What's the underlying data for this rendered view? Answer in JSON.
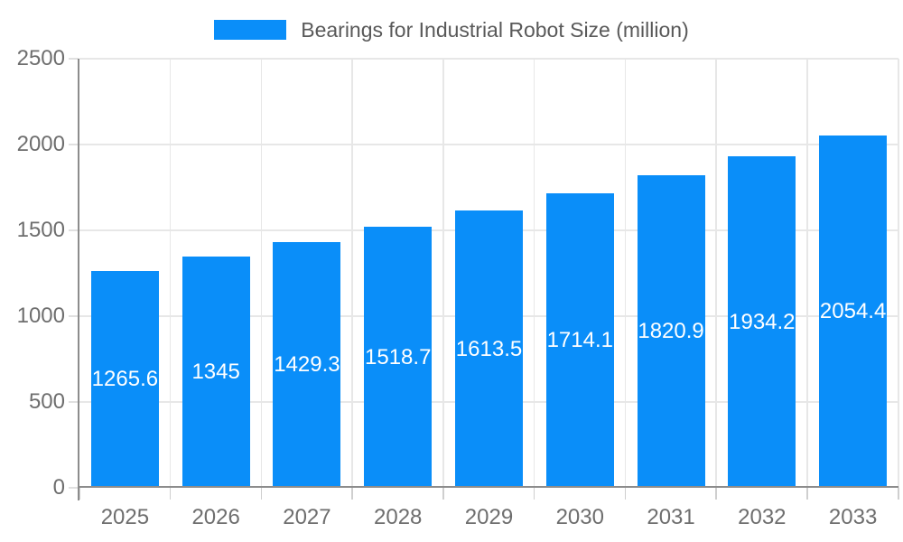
{
  "chart_data": {
    "type": "bar",
    "title": "Bearings for Industrial Robot Size (million)",
    "series_name": "Bearings for Industrial Robot Size (million)",
    "categories": [
      "2025",
      "2026",
      "2027",
      "2028",
      "2029",
      "2030",
      "2031",
      "2032",
      "2033"
    ],
    "values": [
      1265.6,
      1345,
      1429.3,
      1518.7,
      1613.5,
      1714.1,
      1820.9,
      1934.2,
      2054.4
    ],
    "xlabel": "",
    "ylabel": "",
    "ylim": [
      0,
      2500
    ],
    "yticks": [
      0,
      500,
      1000,
      1500,
      2000,
      2500
    ],
    "grid": true,
    "legend_position": "top",
    "value_label_position": "inside-center"
  },
  "legend": {
    "label": "Bearings for Industrial Robot Size (million)"
  },
  "colors": {
    "bar": "#0a8ef9",
    "axis": "#8c8c8c",
    "gridline": "#e7e7e7",
    "tick_text": "#6e6e6e",
    "title_text": "#595959",
    "value_label_text": "#ffffff",
    "background": "#ffffff"
  }
}
